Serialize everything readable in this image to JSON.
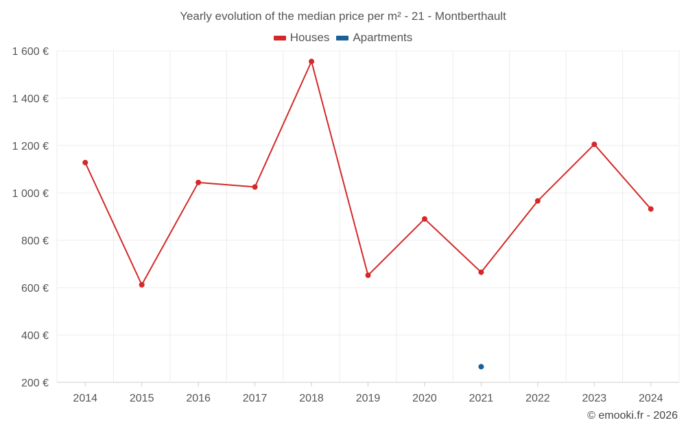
{
  "chart_data": {
    "type": "line",
    "title": "Yearly evolution of the median price per m² - 21 - Montberthault",
    "categories": [
      "2014",
      "2015",
      "2016",
      "2017",
      "2018",
      "2019",
      "2020",
      "2021",
      "2022",
      "2023",
      "2024"
    ],
    "series": [
      {
        "name": "Houses",
        "color": "#d42828",
        "values": [
          1128,
          612,
          1044,
          1025,
          1555,
          652,
          890,
          665,
          966,
          1205,
          932
        ]
      },
      {
        "name": "Apartments",
        "color": "#1a5f96",
        "values": [
          null,
          null,
          null,
          null,
          null,
          null,
          null,
          266,
          null,
          null,
          null
        ]
      }
    ],
    "ylim": [
      200,
      1600
    ],
    "yticks": [
      200,
      400,
      600,
      800,
      1000,
      1200,
      1400,
      1600
    ],
    "ytick_labels": [
      "200 €",
      "400 €",
      "600 €",
      "800 €",
      "1 000 €",
      "1 200 €",
      "1 400 €",
      "1 600 €"
    ],
    "xlabel": "",
    "ylabel": "",
    "grid": true,
    "legend": "top-center"
  },
  "credit": "© emooki.fr - 2026"
}
